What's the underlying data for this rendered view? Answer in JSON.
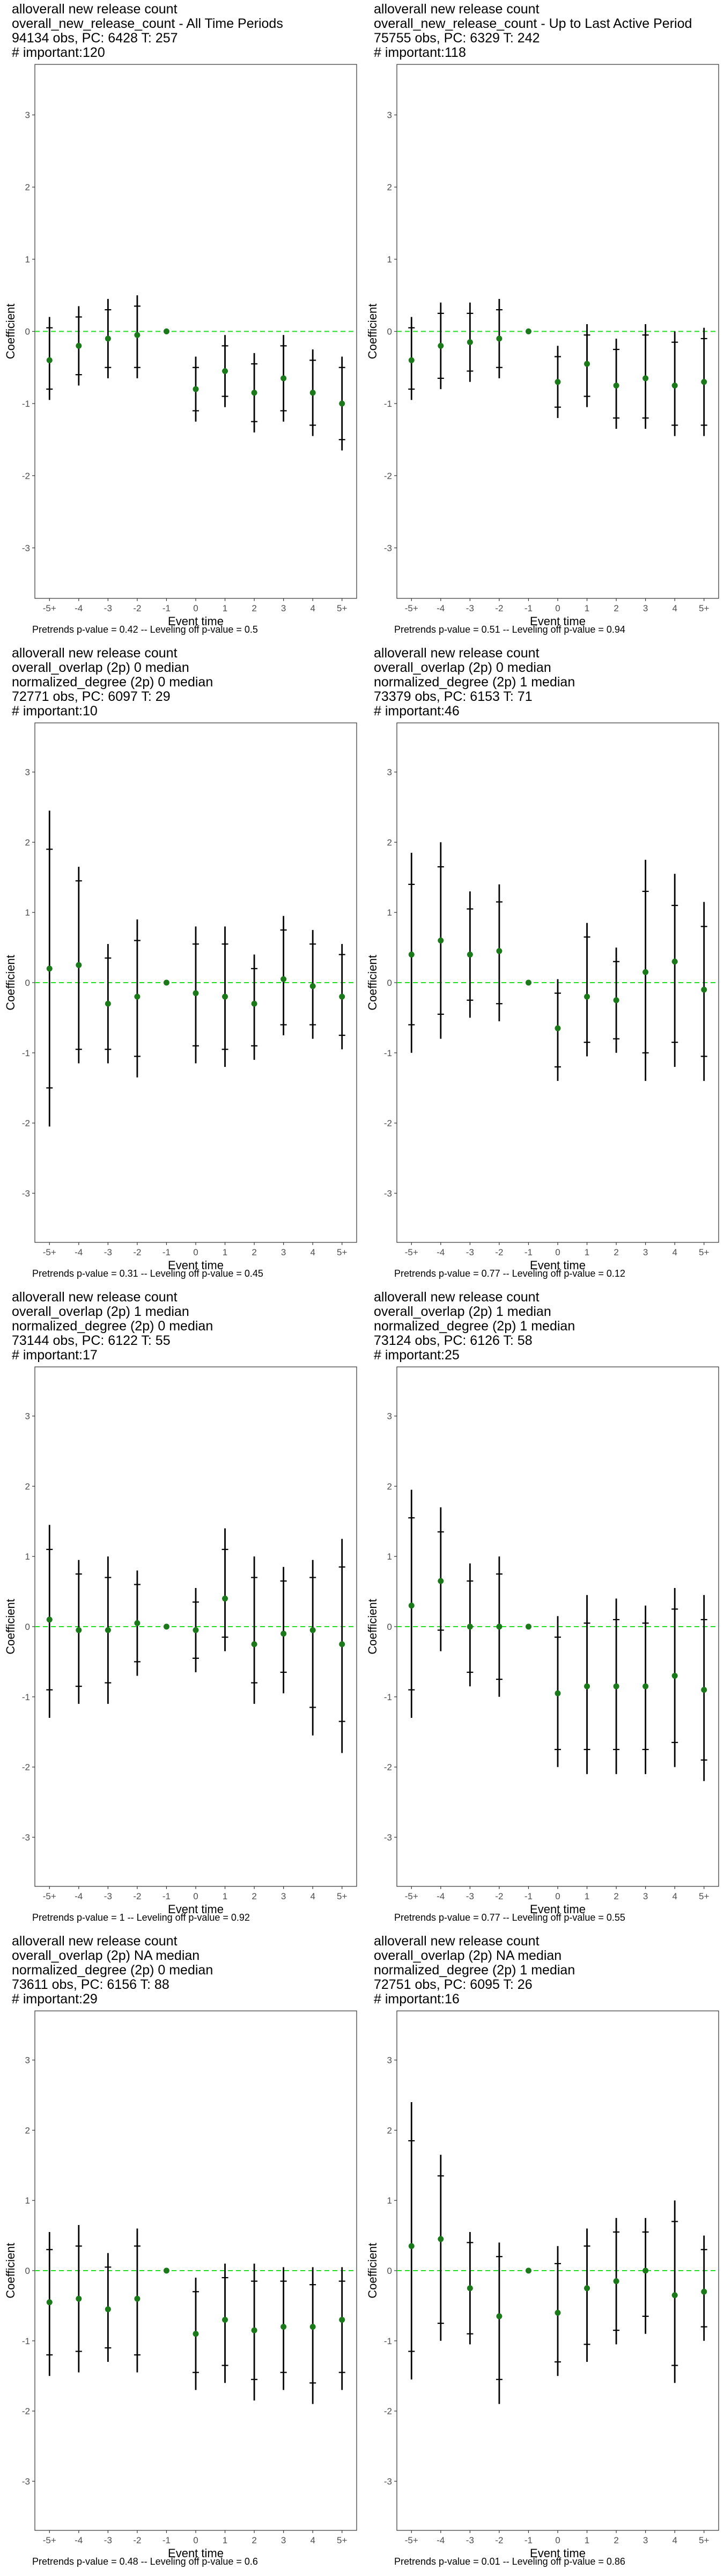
{
  "page": {
    "panels": [
      {
        "title_lines": [
          "alloverall new release count",
          "overall_new_release_count - All Time Periods",
          "94134 obs, PC: 6428 T: 257",
          "# important:120"
        ],
        "pvalue_text": "Pretrends p-value = 0.42 -- Leveling off p-value = 0.5"
      },
      {
        "title_lines": [
          "alloverall new release count",
          "overall_new_release_count - Up to Last Active Period",
          "75755 obs, PC: 6329 T: 242",
          "# important:118"
        ],
        "pvalue_text": "Pretrends p-value = 0.51 -- Leveling off p-value = 0.94"
      },
      {
        "title_lines": [
          "alloverall new release count",
          "overall_overlap (2p) 0 median",
          "normalized_degree (2p) 0 median",
          "72771 obs, PC: 6097 T: 29",
          "# important:10"
        ],
        "pvalue_text": "Pretrends p-value = 0.31 -- Leveling off p-value = 0.45"
      },
      {
        "title_lines": [
          "alloverall new release count",
          "overall_overlap (2p) 0 median",
          "normalized_degree (2p) 1 median",
          "73379 obs, PC: 6153 T: 71",
          "# important:46"
        ],
        "pvalue_text": "Pretrends p-value = 0.77 -- Leveling off p-value = 0.12"
      },
      {
        "title_lines": [
          "alloverall new release count",
          "overall_overlap (2p) 1 median",
          "normalized_degree (2p) 0 median",
          "73144 obs, PC: 6122 T: 55",
          "# important:17"
        ],
        "pvalue_text": "Pretrends p-value = 1 -- Leveling off p-value = 0.92"
      },
      {
        "title_lines": [
          "alloverall new release count",
          "overall_overlap (2p) 1 median",
          "normalized_degree (2p) 1 median",
          "73124 obs, PC: 6126 T: 58",
          "# important:25"
        ],
        "pvalue_text": "Pretrends p-value = 0.77 -- Leveling off p-value = 0.55"
      },
      {
        "title_lines": [
          "alloverall new release count",
          "overall_overlap (2p) NA median",
          "normalized_degree (2p) 0 median",
          "73611 obs, PC: 6156 T: 88",
          "# important:29"
        ],
        "pvalue_text": "Pretrends p-value = 0.48 -- Leveling off p-value = 0.6"
      },
      {
        "title_lines": [
          "alloverall new release count",
          "overall_overlap (2p) NA median",
          "normalized_degree (2p) 1 median",
          "72751 obs, PC: 6095 T: 26",
          "# important:16"
        ],
        "pvalue_text": "Pretrends p-value = 0.01 -- Leveling off p-value = 0.86"
      }
    ]
  },
  "chart_data": [
    {
      "type": "scatter",
      "x_categories": [
        "-5+",
        "-4",
        "-3",
        "-2",
        "-1",
        "0",
        "1",
        "2",
        "3",
        "4",
        "5+"
      ],
      "xlabel": "Event time",
      "ylabel": "Coefficient",
      "ylim": [
        -3.7,
        3.7
      ],
      "y_ticks": [
        -3,
        -2,
        -1,
        0,
        1,
        2,
        3
      ],
      "reference_line": 0,
      "colors": {
        "point": "#1a7a1a",
        "ref_line": "#22dd22",
        "errorbar": "#000000"
      },
      "estimates": [
        -0.4,
        -0.2,
        -0.1,
        -0.05,
        0,
        -0.8,
        -0.55,
        -0.85,
        -0.65,
        -0.85,
        -1.0
      ],
      "ci_outer": [
        [
          -0.95,
          0.2
        ],
        [
          -0.75,
          0.35
        ],
        [
          -0.65,
          0.45
        ],
        [
          -0.65,
          0.5
        ],
        [
          0,
          0
        ],
        [
          -1.25,
          -0.35
        ],
        [
          -1.05,
          -0.05
        ],
        [
          -1.4,
          -0.3
        ],
        [
          -1.25,
          -0.05
        ],
        [
          -1.45,
          -0.25
        ],
        [
          -1.65,
          -0.35
        ]
      ],
      "ci_inner": [
        [
          -0.8,
          0.05
        ],
        [
          -0.6,
          0.2
        ],
        [
          -0.5,
          0.3
        ],
        [
          -0.5,
          0.35
        ],
        [
          0,
          0
        ],
        [
          -1.1,
          -0.5
        ],
        [
          -0.9,
          -0.2
        ],
        [
          -1.25,
          -0.45
        ],
        [
          -1.1,
          -0.2
        ],
        [
          -1.3,
          -0.4
        ],
        [
          -1.5,
          -0.5
        ]
      ]
    },
    {
      "type": "scatter",
      "x_categories": [
        "-5+",
        "-4",
        "-3",
        "-2",
        "-1",
        "0",
        "1",
        "2",
        "3",
        "4",
        "5+"
      ],
      "xlabel": "Event time",
      "ylabel": "Coefficient",
      "ylim": [
        -3.7,
        3.7
      ],
      "y_ticks": [
        -3,
        -2,
        -1,
        0,
        1,
        2,
        3
      ],
      "reference_line": 0,
      "colors": {
        "point": "#1a7a1a",
        "ref_line": "#22dd22",
        "errorbar": "#000000"
      },
      "estimates": [
        -0.4,
        -0.2,
        -0.15,
        -0.1,
        0,
        -0.7,
        -0.45,
        -0.75,
        -0.65,
        -0.75,
        -0.7
      ],
      "ci_outer": [
        [
          -0.95,
          0.2
        ],
        [
          -0.8,
          0.4
        ],
        [
          -0.7,
          0.4
        ],
        [
          -0.65,
          0.45
        ],
        [
          0,
          0
        ],
        [
          -1.2,
          -0.2
        ],
        [
          -1.05,
          0.1
        ],
        [
          -1.35,
          -0.1
        ],
        [
          -1.35,
          0.1
        ],
        [
          -1.45,
          0.0
        ],
        [
          -1.45,
          0.05
        ]
      ],
      "ci_inner": [
        [
          -0.8,
          0.05
        ],
        [
          -0.65,
          0.25
        ],
        [
          -0.55,
          0.25
        ],
        [
          -0.5,
          0.3
        ],
        [
          0,
          0
        ],
        [
          -1.05,
          -0.35
        ],
        [
          -0.9,
          -0.05
        ],
        [
          -1.2,
          -0.25
        ],
        [
          -1.2,
          -0.05
        ],
        [
          -1.3,
          -0.15
        ],
        [
          -1.3,
          -0.1
        ]
      ]
    },
    {
      "type": "scatter",
      "x_categories": [
        "-5+",
        "-4",
        "-3",
        "-2",
        "-1",
        "0",
        "1",
        "2",
        "3",
        "4",
        "5+"
      ],
      "xlabel": "Event time",
      "ylabel": "Coefficient",
      "ylim": [
        -3.7,
        3.7
      ],
      "y_ticks": [
        -3,
        -2,
        -1,
        0,
        1,
        2,
        3
      ],
      "reference_line": 0,
      "colors": {
        "point": "#1a7a1a",
        "ref_line": "#22dd22",
        "errorbar": "#000000"
      },
      "estimates": [
        0.2,
        0.25,
        -0.3,
        -0.2,
        0,
        -0.15,
        -0.2,
        -0.3,
        0.05,
        -0.05,
        -0.2
      ],
      "ci_outer": [
        [
          -2.05,
          2.45
        ],
        [
          -1.15,
          1.65
        ],
        [
          -1.15,
          0.55
        ],
        [
          -1.35,
          0.9
        ],
        [
          0,
          0
        ],
        [
          -1.15,
          0.8
        ],
        [
          -1.2,
          0.8
        ],
        [
          -1.1,
          0.4
        ],
        [
          -0.75,
          0.95
        ],
        [
          -0.8,
          0.75
        ],
        [
          -0.95,
          0.55
        ]
      ],
      "ci_inner": [
        [
          -1.5,
          1.9
        ],
        [
          -0.95,
          1.45
        ],
        [
          -0.95,
          0.35
        ],
        [
          -1.05,
          0.6
        ],
        [
          0,
          0
        ],
        [
          -0.9,
          0.55
        ],
        [
          -0.95,
          0.55
        ],
        [
          -0.9,
          0.2
        ],
        [
          -0.6,
          0.75
        ],
        [
          -0.6,
          0.55
        ],
        [
          -0.75,
          0.4
        ]
      ]
    },
    {
      "type": "scatter",
      "x_categories": [
        "-5+",
        "-4",
        "-3",
        "-2",
        "-1",
        "0",
        "1",
        "2",
        "3",
        "4",
        "5+"
      ],
      "xlabel": "Event time",
      "ylabel": "Coefficient",
      "ylim": [
        -3.7,
        3.7
      ],
      "y_ticks": [
        -3,
        -2,
        -1,
        0,
        1,
        2,
        3
      ],
      "reference_line": 0,
      "colors": {
        "point": "#1a7a1a",
        "ref_line": "#22dd22",
        "errorbar": "#000000"
      },
      "estimates": [
        0.4,
        0.6,
        0.4,
        0.45,
        0,
        -0.65,
        -0.2,
        -0.25,
        0.15,
        0.3,
        -0.1
      ],
      "ci_outer": [
        [
          -1.0,
          1.85
        ],
        [
          -0.8,
          2.0
        ],
        [
          -0.5,
          1.3
        ],
        [
          -0.55,
          1.4
        ],
        [
          0,
          0
        ],
        [
          -1.4,
          0.05
        ],
        [
          -1.05,
          0.85
        ],
        [
          -1.0,
          0.5
        ],
        [
          -1.4,
          1.75
        ],
        [
          -1.2,
          1.55
        ],
        [
          -1.4,
          1.15
        ]
      ],
      "ci_inner": [
        [
          -0.6,
          1.4
        ],
        [
          -0.45,
          1.65
        ],
        [
          -0.25,
          1.05
        ],
        [
          -0.3,
          1.15
        ],
        [
          0,
          0
        ],
        [
          -1.2,
          -0.15
        ],
        [
          -0.85,
          0.65
        ],
        [
          -0.8,
          0.3
        ],
        [
          -1.0,
          1.3
        ],
        [
          -0.85,
          1.1
        ],
        [
          -1.05,
          0.8
        ]
      ]
    },
    {
      "type": "scatter",
      "x_categories": [
        "-5+",
        "-4",
        "-3",
        "-2",
        "-1",
        "0",
        "1",
        "2",
        "3",
        "4",
        "5+"
      ],
      "xlabel": "Event time",
      "ylabel": "Coefficient",
      "ylim": [
        -3.7,
        3.7
      ],
      "y_ticks": [
        -3,
        -2,
        -1,
        0,
        1,
        2,
        3
      ],
      "reference_line": 0,
      "colors": {
        "point": "#1a7a1a",
        "ref_line": "#22dd22",
        "errorbar": "#000000"
      },
      "estimates": [
        0.1,
        -0.05,
        -0.05,
        0.05,
        0,
        -0.05,
        0.4,
        -0.25,
        -0.1,
        -0.05,
        -0.25
      ],
      "ci_outer": [
        [
          -1.3,
          1.45
        ],
        [
          -1.1,
          0.95
        ],
        [
          -1.1,
          1.0
        ],
        [
          -0.7,
          0.8
        ],
        [
          0,
          0
        ],
        [
          -0.65,
          0.55
        ],
        [
          -0.35,
          1.4
        ],
        [
          -1.1,
          1.0
        ],
        [
          -0.95,
          0.85
        ],
        [
          -1.55,
          0.95
        ],
        [
          -1.8,
          1.25
        ]
      ],
      "ci_inner": [
        [
          -0.9,
          1.1
        ],
        [
          -0.85,
          0.75
        ],
        [
          -0.8,
          0.7
        ],
        [
          -0.5,
          0.6
        ],
        [
          0,
          0
        ],
        [
          -0.45,
          0.35
        ],
        [
          -0.15,
          1.1
        ],
        [
          -0.8,
          0.7
        ],
        [
          -0.65,
          0.65
        ],
        [
          -1.15,
          0.7
        ],
        [
          -1.35,
          0.85
        ]
      ]
    },
    {
      "type": "scatter",
      "x_categories": [
        "-5+",
        "-4",
        "-3",
        "-2",
        "-1",
        "0",
        "1",
        "2",
        "3",
        "4",
        "5+"
      ],
      "xlabel": "Event time",
      "ylabel": "Coefficient",
      "ylim": [
        -3.7,
        3.7
      ],
      "y_ticks": [
        -3,
        -2,
        -1,
        0,
        1,
        2,
        3
      ],
      "reference_line": 0,
      "colors": {
        "point": "#1a7a1a",
        "ref_line": "#22dd22",
        "errorbar": "#000000"
      },
      "estimates": [
        0.3,
        0.65,
        0.0,
        0.0,
        0,
        -0.95,
        -0.85,
        -0.85,
        -0.85,
        -0.7,
        -0.9
      ],
      "ci_outer": [
        [
          -1.3,
          1.95
        ],
        [
          -0.35,
          1.7
        ],
        [
          -0.85,
          0.9
        ],
        [
          -1.0,
          1.0
        ],
        [
          0,
          0
        ],
        [
          -2.0,
          0.15
        ],
        [
          -2.1,
          0.45
        ],
        [
          -2.1,
          0.4
        ],
        [
          -2.1,
          0.3
        ],
        [
          -2.0,
          0.55
        ],
        [
          -2.2,
          0.45
        ]
      ],
      "ci_inner": [
        [
          -0.9,
          1.55
        ],
        [
          -0.05,
          1.35
        ],
        [
          -0.65,
          0.65
        ],
        [
          -0.75,
          0.75
        ],
        [
          0,
          0
        ],
        [
          -1.75,
          -0.15
        ],
        [
          -1.75,
          0.05
        ],
        [
          -1.75,
          0.1
        ],
        [
          -1.75,
          0.05
        ],
        [
          -1.65,
          0.25
        ],
        [
          -1.9,
          0.1
        ]
      ]
    },
    {
      "type": "scatter",
      "x_categories": [
        "-5+",
        "-4",
        "-3",
        "-2",
        "-1",
        "0",
        "1",
        "2",
        "3",
        "4",
        "5+"
      ],
      "xlabel": "Event time",
      "ylabel": "Coefficient",
      "ylim": [
        -3.7,
        3.7
      ],
      "y_ticks": [
        -3,
        -2,
        -1,
        0,
        1,
        2,
        3
      ],
      "reference_line": 0,
      "colors": {
        "point": "#1a7a1a",
        "ref_line": "#22dd22",
        "errorbar": "#000000"
      },
      "estimates": [
        -0.45,
        -0.4,
        -0.55,
        -0.4,
        0,
        -0.9,
        -0.7,
        -0.85,
        -0.8,
        -0.8,
        -0.7
      ],
      "ci_outer": [
        [
          -1.5,
          0.55
        ],
        [
          -1.45,
          0.65
        ],
        [
          -1.3,
          0.25
        ],
        [
          -1.45,
          0.6
        ],
        [
          0,
          0
        ],
        [
          -1.7,
          -0.1
        ],
        [
          -1.6,
          0.1
        ],
        [
          -1.85,
          0.1
        ],
        [
          -1.7,
          0.05
        ],
        [
          -1.9,
          0.05
        ],
        [
          -1.7,
          0.05
        ]
      ],
      "ci_inner": [
        [
          -1.2,
          0.3
        ],
        [
          -1.15,
          0.35
        ],
        [
          -1.1,
          0.05
        ],
        [
          -1.2,
          0.35
        ],
        [
          0,
          0
        ],
        [
          -1.45,
          -0.3
        ],
        [
          -1.35,
          -0.1
        ],
        [
          -1.55,
          -0.15
        ],
        [
          -1.45,
          -0.15
        ],
        [
          -1.6,
          -0.2
        ],
        [
          -1.45,
          -0.15
        ]
      ]
    },
    {
      "type": "scatter",
      "x_categories": [
        "-5+",
        "-4",
        "-3",
        "-2",
        "-1",
        "0",
        "1",
        "2",
        "3",
        "4",
        "5+"
      ],
      "xlabel": "Event time",
      "ylabel": "Coefficient",
      "ylim": [
        -3.7,
        3.7
      ],
      "y_ticks": [
        -3,
        -2,
        -1,
        0,
        1,
        2,
        3
      ],
      "reference_line": 0,
      "colors": {
        "point": "#1a7a1a",
        "ref_line": "#22dd22",
        "errorbar": "#000000"
      },
      "estimates": [
        0.35,
        0.45,
        -0.25,
        -0.65,
        0,
        -0.6,
        -0.25,
        -0.15,
        0.0,
        -0.35,
        -0.3
      ],
      "ci_outer": [
        [
          -1.55,
          2.4
        ],
        [
          -1.0,
          1.65
        ],
        [
          -1.05,
          0.55
        ],
        [
          -1.9,
          0.4
        ],
        [
          0,
          0
        ],
        [
          -1.5,
          0.35
        ],
        [
          -1.3,
          0.6
        ],
        [
          -1.05,
          0.75
        ],
        [
          -0.9,
          0.75
        ],
        [
          -1.6,
          1.0
        ],
        [
          -1.0,
          0.5
        ]
      ],
      "ci_inner": [
        [
          -1.15,
          1.85
        ],
        [
          -0.75,
          1.35
        ],
        [
          -0.9,
          0.4
        ],
        [
          -1.55,
          0.2
        ],
        [
          0,
          0
        ],
        [
          -1.3,
          0.1
        ],
        [
          -1.05,
          0.35
        ],
        [
          -0.85,
          0.55
        ],
        [
          -0.65,
          0.55
        ],
        [
          -1.35,
          0.7
        ],
        [
          -0.8,
          0.3
        ]
      ]
    }
  ]
}
